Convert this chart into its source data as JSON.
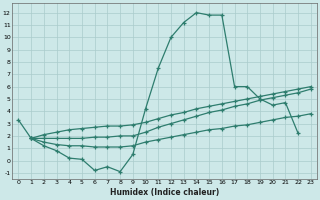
{
  "xlabel": "Humidex (Indice chaleur)",
  "line_color": "#2e7d6e",
  "bg_color": "#cde8e8",
  "grid_color": "#aacccc",
  "ylim": [
    -1.5,
    12.8
  ],
  "xlim": [
    -0.5,
    23.5
  ],
  "yticks": [
    -1,
    0,
    1,
    2,
    3,
    4,
    5,
    6,
    7,
    8,
    9,
    10,
    11,
    12
  ],
  "xticks": [
    0,
    1,
    2,
    3,
    4,
    5,
    6,
    7,
    8,
    9,
    10,
    11,
    12,
    13,
    14,
    15,
    16,
    17,
    18,
    19,
    20,
    21,
    22,
    23
  ],
  "curve1_x": [
    0,
    1,
    2,
    3,
    4,
    5,
    6,
    7,
    8,
    9,
    10,
    11,
    12,
    13,
    14,
    15,
    16,
    17,
    18,
    19,
    20,
    21,
    22
  ],
  "curve1_y": [
    3.3,
    1.8,
    1.2,
    0.8,
    0.2,
    0.1,
    -0.8,
    -0.5,
    -0.9,
    0.5,
    4.2,
    7.5,
    10.0,
    11.2,
    12.0,
    11.8,
    11.8,
    6.0,
    6.0,
    5.0,
    4.5,
    4.7,
    2.2
  ],
  "curve2_x": [
    1,
    2,
    3,
    4,
    5,
    6,
    7,
    8,
    9,
    10,
    11,
    12,
    13,
    14,
    15,
    16,
    17,
    18,
    19,
    20,
    21,
    22,
    23
  ],
  "curve2_y": [
    1.8,
    1.5,
    1.3,
    1.2,
    1.2,
    1.1,
    1.1,
    1.1,
    1.2,
    1.5,
    1.7,
    1.9,
    2.1,
    2.3,
    2.5,
    2.6,
    2.8,
    2.9,
    3.1,
    3.3,
    3.5,
    3.6,
    3.8
  ],
  "curve3_x": [
    1,
    2,
    3,
    4,
    5,
    6,
    7,
    8,
    9,
    10,
    11,
    12,
    13,
    14,
    15,
    16,
    17,
    18,
    19,
    20,
    21,
    22,
    23
  ],
  "curve3_y": [
    1.8,
    1.8,
    1.8,
    1.8,
    1.8,
    1.9,
    1.9,
    2.0,
    2.0,
    2.3,
    2.7,
    3.0,
    3.3,
    3.6,
    3.9,
    4.1,
    4.4,
    4.6,
    4.9,
    5.1,
    5.3,
    5.5,
    5.8
  ],
  "curve4_x": [
    1,
    2,
    3,
    4,
    5,
    6,
    7,
    8,
    9,
    10,
    11,
    12,
    13,
    14,
    15,
    16,
    17,
    18,
    19,
    20,
    21,
    22,
    23
  ],
  "curve4_y": [
    1.8,
    2.1,
    2.3,
    2.5,
    2.6,
    2.7,
    2.8,
    2.8,
    2.9,
    3.1,
    3.4,
    3.7,
    3.9,
    4.2,
    4.4,
    4.6,
    4.8,
    5.0,
    5.2,
    5.4,
    5.6,
    5.8,
    6.0
  ]
}
